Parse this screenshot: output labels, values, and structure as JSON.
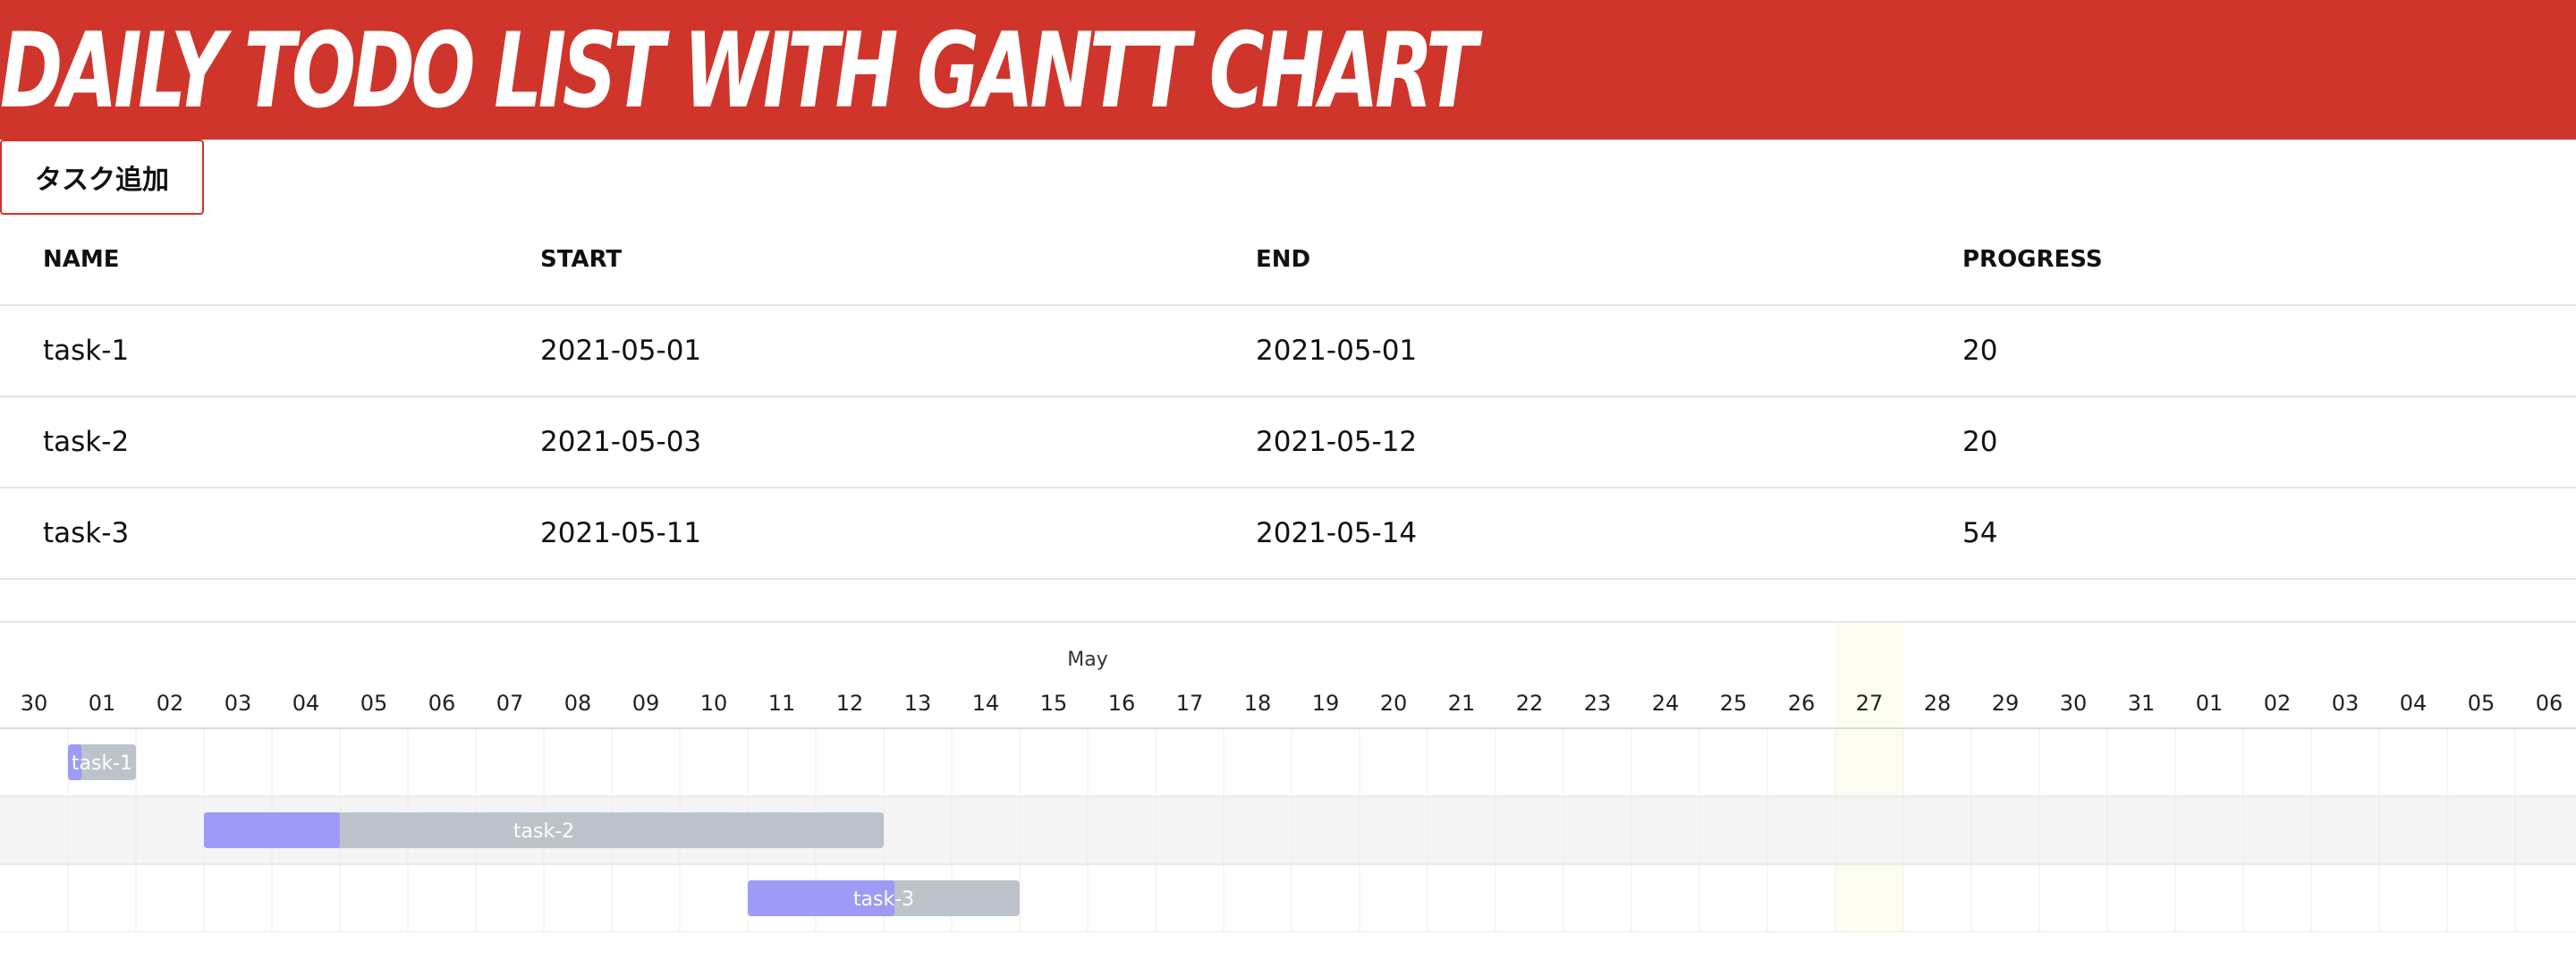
{
  "header": {
    "title": "Daily Todo List With Gantt Chart"
  },
  "toolbar": {
    "add_task_label": "タスク追加"
  },
  "table": {
    "columns": [
      "NAME",
      "START",
      "END",
      "PROGRESS"
    ],
    "rows": [
      {
        "name": "task-1",
        "start": "2021-05-01",
        "end": "2021-05-01",
        "progress": "20"
      },
      {
        "name": "task-2",
        "start": "2021-05-03",
        "end": "2021-05-12",
        "progress": "20"
      },
      {
        "name": "task-3",
        "start": "2021-05-11",
        "end": "2021-05-14",
        "progress": "54"
      }
    ]
  },
  "colors": {
    "header_bg": "#cf352b",
    "bar_bg": "#bcc3cb",
    "bar_progress": "#9d9bf5",
    "today_bg": "#fcfcf0",
    "alt_row_bg": "#f5f5f5"
  },
  "gantt": {
    "month": "May",
    "days": [
      "30",
      "01",
      "02",
      "03",
      "04",
      "05",
      "06",
      "07",
      "08",
      "09",
      "10",
      "11",
      "12",
      "13",
      "14",
      "15",
      "16",
      "17",
      "18",
      "19",
      "20",
      "21",
      "22",
      "23",
      "24",
      "25",
      "26",
      "27",
      "28",
      "29",
      "30",
      "31",
      "01",
      "02",
      "03",
      "04",
      "05",
      "06"
    ],
    "highlight_day": "27",
    "tasks": [
      {
        "name": "task-1",
        "start_day": "01",
        "end_day": "01",
        "progress": 20
      },
      {
        "name": "task-2",
        "start_day": "03",
        "end_day": "12",
        "progress": 20
      },
      {
        "name": "task-3",
        "start_day": "11",
        "end_day": "14",
        "progress": 54
      }
    ]
  }
}
